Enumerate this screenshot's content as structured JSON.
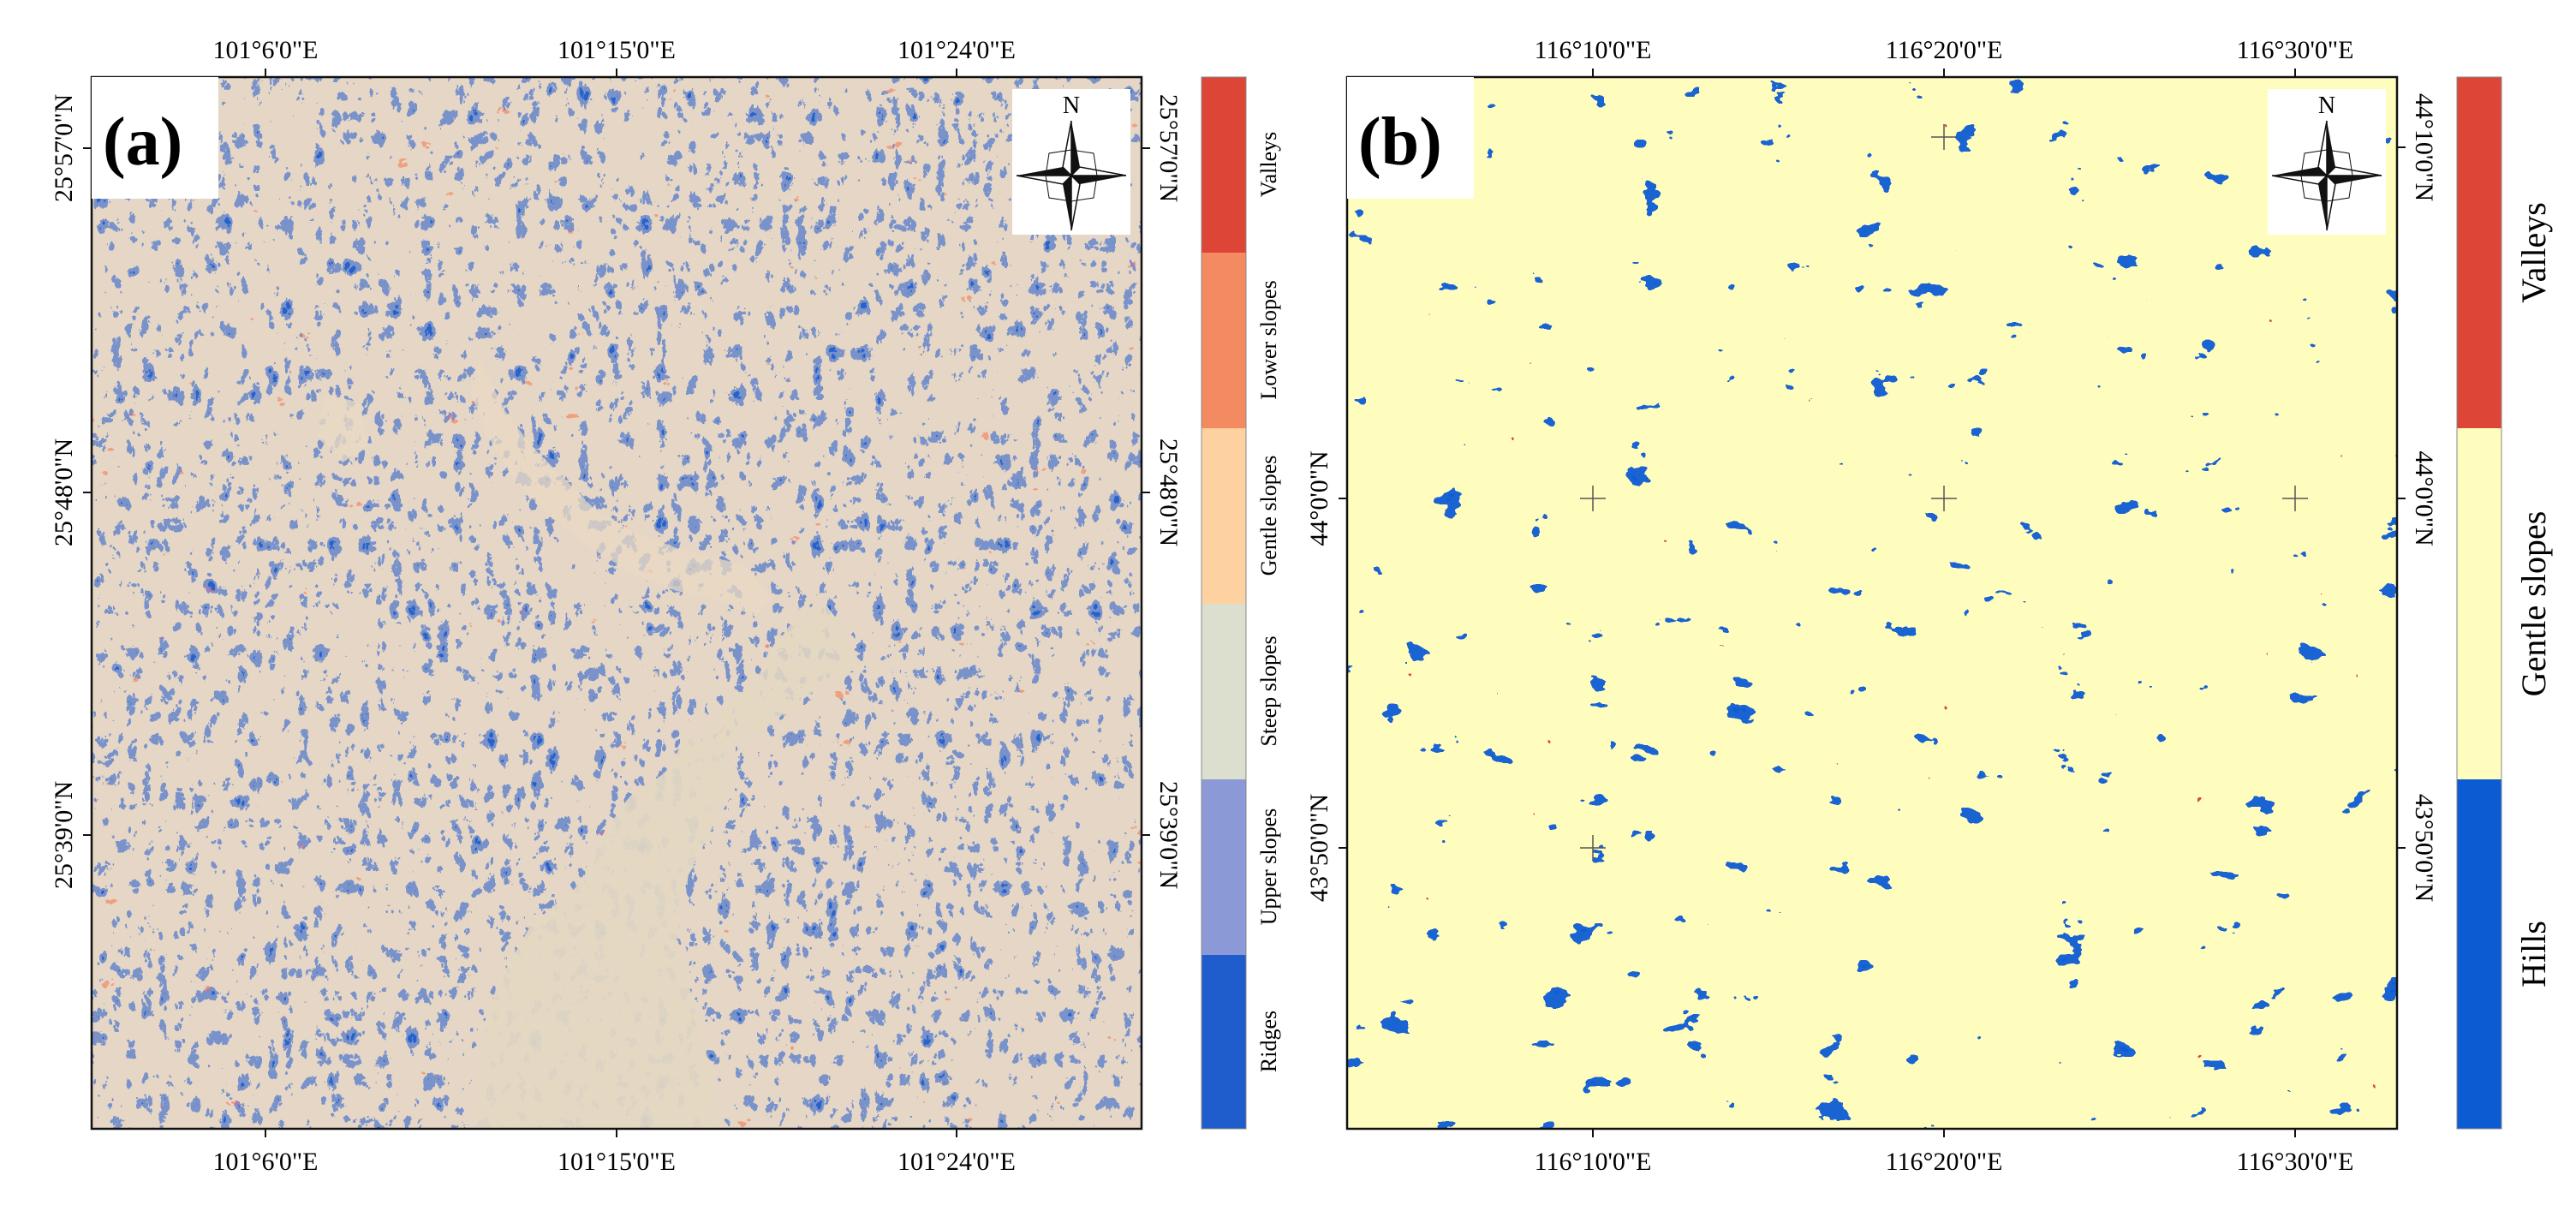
{
  "panels": [
    {
      "label": "(a)",
      "top_ticks": [
        "101°6'0\"E",
        "101°15'0\"E",
        "101°24'0\"E"
      ],
      "bottom_ticks": [
        "101°6'0\"E",
        "101°15'0\"E",
        "101°24'0\"E"
      ],
      "left_ticks": [
        "25°57'0\"N",
        "25°48'0\"N",
        "25°39'0\"N"
      ],
      "right_ticks": [
        "25°57'0\"N",
        "25°48'0\"N",
        "25°39'0\"N"
      ],
      "north_label": "N",
      "legend": [
        {
          "label": "Valleys",
          "color": "#dd4637"
        },
        {
          "label": "Lower slopes",
          "color": "#f38a61"
        },
        {
          "label": "Gentle slopes",
          "color": "#fdd2a0"
        },
        {
          "label": "Steep slopes",
          "color": "#dcdfcd"
        },
        {
          "label": "Upper slopes",
          "color": "#8b9ad6"
        },
        {
          "label": "Ridges",
          "color": "#1f5dcc"
        }
      ]
    },
    {
      "label": "(b)",
      "top_ticks": [
        "116°10'0\"E",
        "116°20'0\"E",
        "116°30'0\"E"
      ],
      "bottom_ticks": [
        "116°10'0\"E",
        "116°20'0\"E",
        "116°30'0\"E"
      ],
      "left_ticks": [
        "44°0'0\"N",
        "43°50'0\"N"
      ],
      "right_ticks": [
        "44°10'0\"N",
        "44°0'0\"N",
        "43°50'0\"N"
      ],
      "north_label": "N",
      "legend": [
        {
          "label": "Valleys",
          "color": "#dd4637"
        },
        {
          "label": "Gentle slopes",
          "color": "#fefdbe"
        },
        {
          "label": "Hills",
          "color": "#0b5bd3"
        }
      ]
    }
  ]
}
